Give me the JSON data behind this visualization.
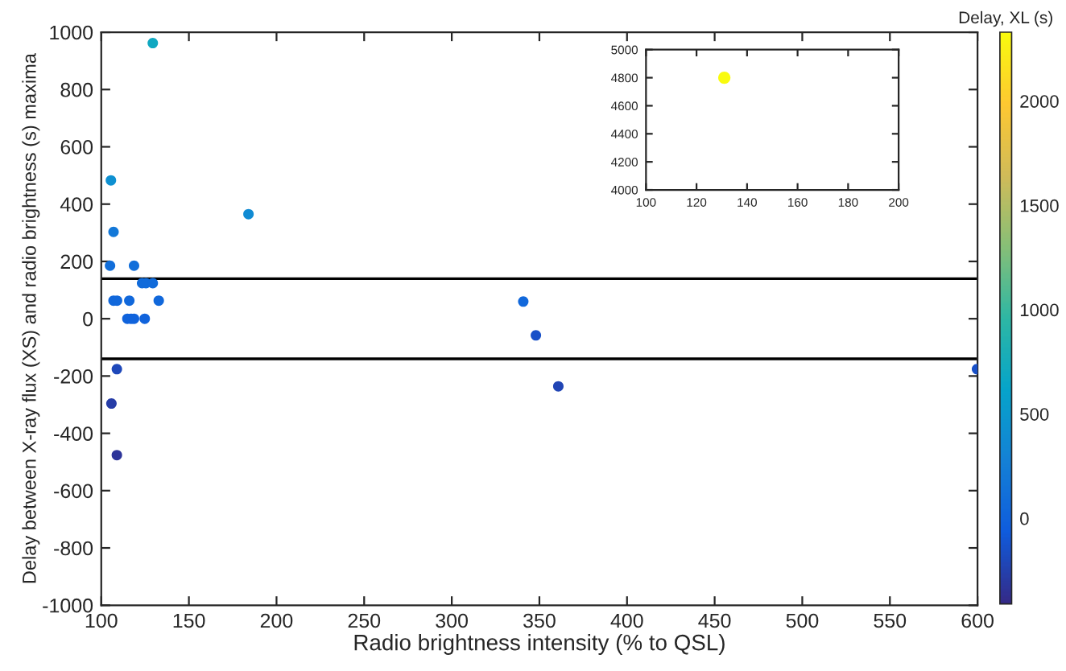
{
  "chart_data": [
    {
      "type": "scatter",
      "xlabel": "Radio brightness intensity (% to QSL)",
      "ylabel": "Delay between X-ray flux (XS) and radio brightness (s) maxima",
      "clabel": "Delay, XL (s)",
      "x": [
        129.4,
        105.5,
        107,
        105,
        118.7,
        184,
        107,
        109,
        116,
        132.8,
        123.3,
        125.5,
        129.4,
        114.9,
        117,
        118.7,
        124.8,
        108.9,
        105.8,
        108.9,
        340.8,
        348,
        360.8,
        599.7
      ],
      "values": [
        962,
        483,
        303,
        185,
        185,
        365,
        63,
        63,
        63,
        63,
        124,
        124,
        124,
        0,
        0,
        0,
        0,
        -176,
        -296,
        -476,
        60,
        -58,
        -236,
        -176
      ],
      "cvalues": [
        700,
        420,
        200,
        100,
        100,
        380,
        50,
        50,
        50,
        50,
        80,
        80,
        80,
        0,
        0,
        0,
        0,
        -200,
        -280,
        -330,
        50,
        -150,
        -220,
        -150
      ],
      "clim": [
        -410,
        2330
      ],
      "cticks": [
        0,
        500,
        1000,
        1500,
        2000
      ],
      "xlim": [
        100,
        600
      ],
      "xticks": [
        100,
        150,
        200,
        250,
        300,
        350,
        400,
        450,
        500,
        550,
        600
      ],
      "ylim": [
        -1000,
        1000
      ],
      "yticks": [
        -1000,
        -800,
        -600,
        -400,
        -200,
        0,
        200,
        400,
        600,
        800,
        1000
      ],
      "ref_lines": [
        {
          "axis": "y",
          "value": 140,
          "color": "#000000"
        },
        {
          "axis": "y",
          "value": -140,
          "color": "#000000"
        }
      ],
      "marker": "circle",
      "grid": false
    },
    {
      "type": "scatter",
      "x": [
        131
      ],
      "values": [
        4800
      ],
      "color": "#f9fb0e",
      "xlim": [
        100,
        200
      ],
      "xticks": [
        100,
        120,
        140,
        160,
        180,
        200
      ],
      "ylim": [
        4000,
        5000
      ],
      "yticks": [
        4000,
        4200,
        4400,
        4600,
        4800,
        5000
      ],
      "marker": "circle",
      "grid": false
    }
  ]
}
